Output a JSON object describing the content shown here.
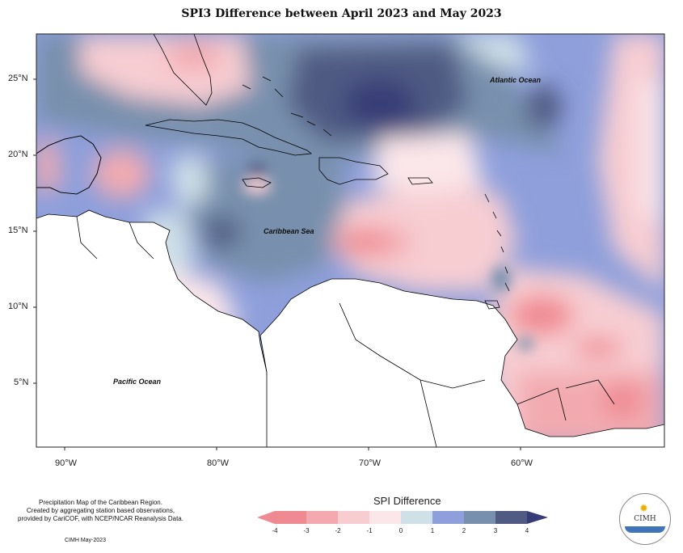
{
  "title": "SPI3 Difference between April 2023 and May 2023",
  "axis": {
    "lat_labels": [
      "25°N",
      "20°N",
      "15°N",
      "10°N",
      "5°N"
    ],
    "lon_labels": [
      "90°W",
      "80°W",
      "70°W",
      "60°W"
    ]
  },
  "places": {
    "atlantic": "Atlantic Ocean",
    "caribbean": "Caribbean Sea",
    "pacific": "Pacific Ocean"
  },
  "credit": {
    "line1": "Precipitation Map of the Caribbean Region.",
    "line2": "Created by aggregating station based observations,",
    "line3": "provided by CariCOF, with NCEP/NCAR Reanalysis Data.",
    "date": "CIMH May-2023"
  },
  "legend": {
    "title": "SPI Difference",
    "ticks": [
      "-4",
      "-3",
      "-2",
      "-1",
      "0",
      "1",
      "2",
      "3",
      "4"
    ],
    "colors": [
      "#f08a92",
      "#f2aab0",
      "#f7cdd2",
      "#fbe6e9",
      "#cfe0e8",
      "#8e9fdb",
      "#7890ad",
      "#505a83",
      "#373c77"
    ]
  },
  "logo": {
    "text": "CIMH"
  }
}
